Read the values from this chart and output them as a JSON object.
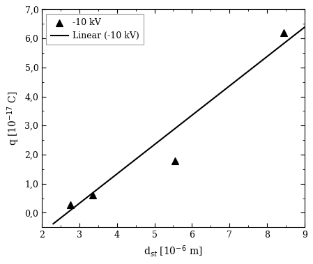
{
  "scatter_x": [
    2.75,
    3.35,
    5.55,
    8.45
  ],
  "scatter_y": [
    0.28,
    0.62,
    1.78,
    6.2
  ],
  "line_x": [
    2.3,
    9.0
  ],
  "line_y": [
    -0.38,
    6.38
  ],
  "xlim": [
    2,
    9
  ],
  "ylim_min": -0.5,
  "ylim_max": 7.0,
  "xticks": [
    2,
    3,
    4,
    5,
    6,
    7,
    8,
    9
  ],
  "yticks": [
    0.0,
    1.0,
    2.0,
    3.0,
    4.0,
    5.0,
    6.0,
    7.0
  ],
  "ytick_labels": [
    "0,0",
    "1,0",
    "2,0",
    "3,0",
    "4,0",
    "5,0",
    "6,0",
    "7,0"
  ],
  "xlabel": "d$_{st}$ [10$^{-6}$ m]",
  "ylabel": "q [10$^{-17}$ C]",
  "legend_marker_label": "-10 kV",
  "legend_line_label": "Linear (-10 kV)",
  "scatter_color": "#000000",
  "line_color": "#000000",
  "background_color": "#ffffff",
  "plot_bg_color": "#ffffff",
  "marker_size": 7,
  "line_width": 1.5
}
